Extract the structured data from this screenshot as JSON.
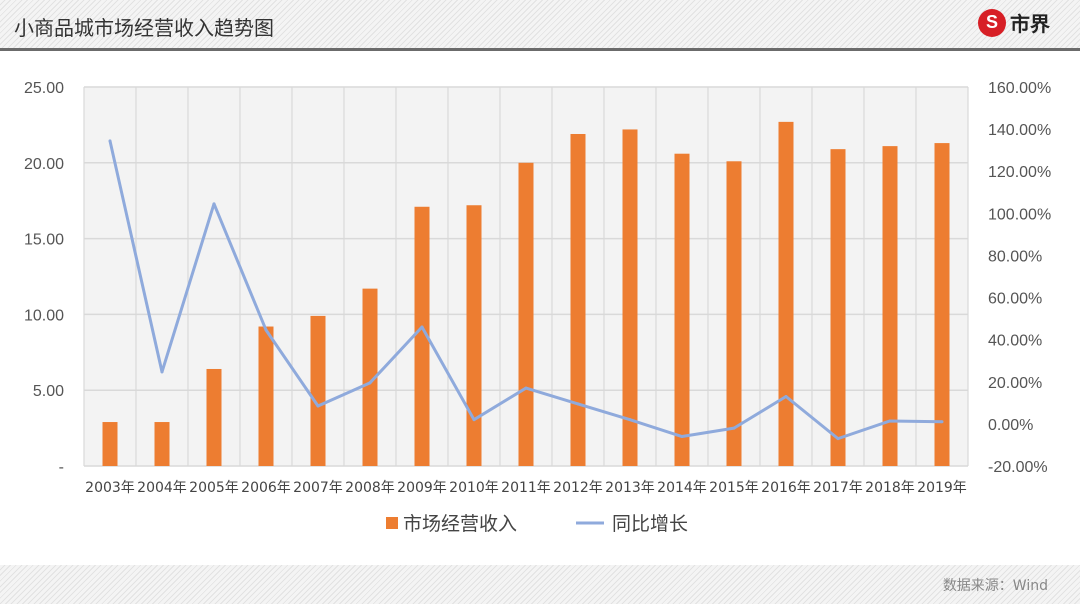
{
  "header": {
    "title": "小商品城市场经营收入趋势图",
    "logo_text": "市界",
    "logo_mark": "S"
  },
  "footer": {
    "source": "数据来源：Wind"
  },
  "colors": {
    "bar": "#ed7d31",
    "line": "#8faadc",
    "grid": "#d9d9d9"
  },
  "chart_data": {
    "type": "bar+line",
    "title": "小商品城市场经营收入趋势图",
    "categories": [
      "2003年",
      "2004年",
      "2005年",
      "2006年",
      "2007年",
      "2008年",
      "2009年",
      "2010年",
      "2011年",
      "2012年",
      "2013年",
      "2014年",
      "2015年",
      "2016年",
      "2017年",
      "2018年",
      "2019年"
    ],
    "series": [
      {
        "name": "市场经营收入",
        "type": "bar",
        "axis": "left",
        "values": [
          2.9,
          2.9,
          6.4,
          9.2,
          9.9,
          11.7,
          17.1,
          17.2,
          20.0,
          21.9,
          22.2,
          20.6,
          20.1,
          22.7,
          20.9,
          21.1,
          21.3
        ]
      },
      {
        "name": "同比增长",
        "type": "line",
        "axis": "right",
        "values": [
          134.4,
          24.7,
          104.5,
          44.6,
          8.5,
          19.5,
          46.0,
          2.0,
          17.0,
          9.5,
          2.0,
          -6.0,
          -2.0,
          13.0,
          -7.0,
          1.4,
          1.0
        ]
      }
    ],
    "y_left": {
      "ylim": [
        0,
        25
      ],
      "ticks": [
        "-",
        "5.00",
        "10.00",
        "15.00",
        "20.00",
        "25.00"
      ]
    },
    "y_right": {
      "ylim": [
        -20,
        160
      ],
      "ticks": [
        "-20.00%",
        "0.00%",
        "20.00%",
        "40.00%",
        "60.00%",
        "80.00%",
        "100.00%",
        "120.00%",
        "140.00%",
        "160.00%"
      ]
    },
    "grid": true,
    "legend": "bottom"
  }
}
